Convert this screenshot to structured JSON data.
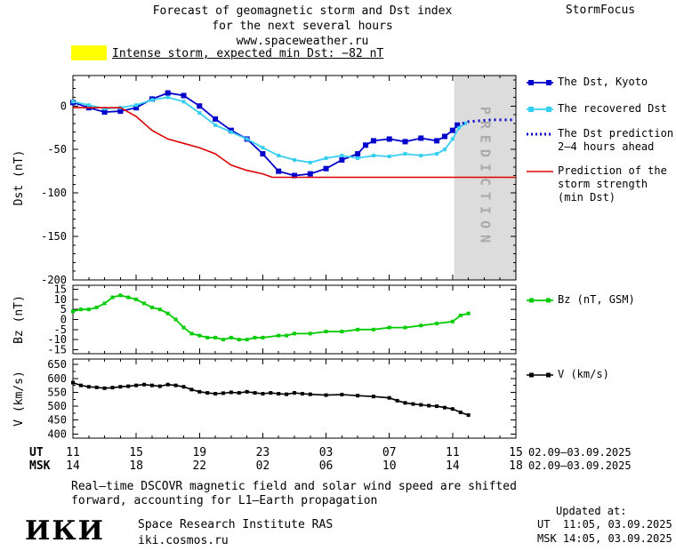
{
  "header": {
    "title_line1": "Forecast of geomagnetic storm and Dst index",
    "title_line2": "for the next several hours",
    "title_line3": "www.spaceweather.ru",
    "brand": "StormFocus"
  },
  "alert": {
    "swatch_color": "#ffff00",
    "text": "Intense storm, expected min Dst: −82 nT"
  },
  "legend": {
    "dst_kyoto": {
      "label": "The Dst, Kyoto",
      "color": "#0000cc"
    },
    "recovered": {
      "label": "The recovered Dst",
      "color": "#36cff2"
    },
    "prediction": {
      "label_line1": "The Dst prediction",
      "label_line2": "2–4 hours ahead",
      "color": "#0000cc"
    },
    "storm_strength": {
      "label_line1": "Prediction of the",
      "label_line2": "storm strength",
      "label_line3": "(min Dst)",
      "color": "#dd0000"
    },
    "bz": {
      "label": "Bz (nT, GSM)",
      "color": "#00cc00"
    },
    "v": {
      "label": "V (km/s)",
      "color": "#000000"
    }
  },
  "axes": {
    "dst_ylabel": "Dst (nT)",
    "bz_ylabel": "Bz (nT)",
    "v_ylabel": "V (km/s)",
    "ut_row_label": "UT",
    "msk_row_label": "MSK",
    "ut_date_range": "02.09–03.09.2025",
    "msk_date_range": "02.09–03.09.2025"
  },
  "prediction_band": {
    "label": "PREDICTION",
    "start_hour": 24.1,
    "color": "#dcdcdc",
    "text_color": "#a9a9a9"
  },
  "footer": {
    "note_line1": "Real–time DSCOVR magnetic field and solar wind speed are shifted",
    "note_line2": "forward, accounting for L1–Earth propagation",
    "updated_label": "Updated at:",
    "updated_ut": "UT  11:05, 03.09.2025",
    "updated_msk": "MSK 14:05, 03.09.2025",
    "logo": "ИКИ",
    "institute": "Space Research Institute RAS",
    "site": "iki.cosmos.ru"
  },
  "chart_data": [
    {
      "type": "line",
      "name": "Dst",
      "ylabel": "Dst (nT)",
      "ylim": [
        -200,
        35
      ],
      "yticks": [
        0,
        -50,
        -100,
        -150,
        -200
      ],
      "yminor": 10,
      "x_unit": "hours since 11:00 UT 02.09.2025",
      "x_range_hours": [
        0,
        28
      ],
      "xticks_hours": [
        0,
        4,
        8,
        12,
        16,
        20,
        24,
        28
      ],
      "xtick_labels_ut": [
        "11",
        "15",
        "19",
        "23",
        "03",
        "07",
        "11",
        "15"
      ],
      "xtick_labels_msk": [
        "14",
        "18",
        "22",
        "02",
        "06",
        "10",
        "14",
        "18"
      ],
      "series": [
        {
          "name": "The Dst, Kyoto",
          "color": "#0000cc",
          "style": "solid",
          "marker": "square",
          "marker_size": 6,
          "width": 1.8,
          "points": [
            [
              0,
              4
            ],
            [
              1,
              -2
            ],
            [
              2,
              -7
            ],
            [
              3,
              -6
            ],
            [
              4,
              -2
            ],
            [
              5,
              8
            ],
            [
              6,
              15
            ],
            [
              7,
              12
            ],
            [
              8,
              0
            ],
            [
              9,
              -15
            ],
            [
              10,
              -28
            ],
            [
              11,
              -38
            ],
            [
              12,
              -55
            ],
            [
              13,
              -75
            ],
            [
              14,
              -80
            ],
            [
              15,
              -78
            ],
            [
              16,
              -72
            ],
            [
              17,
              -62
            ],
            [
              18,
              -55
            ],
            [
              18.5,
              -45
            ],
            [
              19,
              -40
            ],
            [
              20,
              -38
            ],
            [
              21,
              -41
            ],
            [
              22,
              -37
            ],
            [
              23,
              -40
            ],
            [
              23.5,
              -35
            ],
            [
              24,
              -28
            ],
            [
              24.3,
              -22
            ]
          ]
        },
        {
          "name": "The recovered Dst",
          "color": "#36cff2",
          "style": "solid",
          "marker": "square",
          "marker_size": 4,
          "width": 1.8,
          "points": [
            [
              0,
              5
            ],
            [
              1,
              1
            ],
            [
              2,
              -3
            ],
            [
              3,
              -2
            ],
            [
              4,
              1
            ],
            [
              5,
              7
            ],
            [
              6,
              10
            ],
            [
              7,
              5
            ],
            [
              8,
              -8
            ],
            [
              9,
              -22
            ],
            [
              10,
              -30
            ],
            [
              11,
              -38
            ],
            [
              12,
              -48
            ],
            [
              13,
              -57
            ],
            [
              14,
              -62
            ],
            [
              15,
              -65
            ],
            [
              16,
              -60
            ],
            [
              17,
              -57
            ],
            [
              18,
              -60
            ],
            [
              19,
              -57
            ],
            [
              20,
              -58
            ],
            [
              21,
              -55
            ],
            [
              22,
              -57
            ],
            [
              23,
              -55
            ],
            [
              23.5,
              -50
            ],
            [
              24,
              -38
            ],
            [
              24.4,
              -25
            ],
            [
              24.8,
              -20
            ]
          ]
        },
        {
          "name": "The Dst prediction 2–4 hours ahead",
          "color": "#0000cc",
          "style": "dotted",
          "marker": "none",
          "width": 3,
          "points": [
            [
              24.3,
              -22
            ],
            [
              25,
              -18
            ],
            [
              25.7,
              -17
            ],
            [
              26.4,
              -16
            ],
            [
              27.2,
              -16
            ],
            [
              28,
              -16
            ]
          ]
        },
        {
          "name": "Prediction of the storm strength (min Dst)",
          "color": "#dd0000",
          "style": "solid",
          "marker": "none",
          "width": 1.6,
          "points": [
            [
              0,
              -2
            ],
            [
              3,
              -2
            ],
            [
              4,
              -12
            ],
            [
              5,
              -28
            ],
            [
              6,
              -38
            ],
            [
              7,
              -43
            ],
            [
              8,
              -48
            ],
            [
              9,
              -55
            ],
            [
              10,
              -68
            ],
            [
              11,
              -74
            ],
            [
              12,
              -78
            ],
            [
              12.6,
              -82
            ],
            [
              28,
              -82
            ]
          ]
        }
      ]
    },
    {
      "type": "line",
      "name": "Bz",
      "ylabel": "Bz (nT)",
      "ylim": [
        -17,
        17
      ],
      "yticks": [
        15,
        10,
        5,
        0,
        -5,
        -10,
        -15
      ],
      "yminor": null,
      "series": [
        {
          "name": "Bz (nT, GSM)",
          "color": "#00cc00",
          "style": "solid",
          "marker": "square",
          "marker_size": 4,
          "width": 1.8,
          "points": [
            [
              0,
              4
            ],
            [
              0.5,
              5
            ],
            [
              1,
              5
            ],
            [
              1.5,
              6
            ],
            [
              2,
              8
            ],
            [
              2.5,
              11
            ],
            [
              3,
              12
            ],
            [
              3.5,
              11
            ],
            [
              4,
              10
            ],
            [
              4.5,
              8
            ],
            [
              5,
              6
            ],
            [
              5.5,
              5
            ],
            [
              6,
              3
            ],
            [
              6.5,
              0
            ],
            [
              7,
              -4
            ],
            [
              7.5,
              -7
            ],
            [
              8,
              -8
            ],
            [
              8.5,
              -9
            ],
            [
              9,
              -9
            ],
            [
              9.5,
              -10
            ],
            [
              10,
              -9
            ],
            [
              10.5,
              -10
            ],
            [
              11,
              -10
            ],
            [
              11.5,
              -9
            ],
            [
              12,
              -9
            ],
            [
              13,
              -8
            ],
            [
              13.5,
              -8
            ],
            [
              14,
              -7
            ],
            [
              15,
              -7
            ],
            [
              16,
              -6
            ],
            [
              17,
              -6
            ],
            [
              18,
              -5
            ],
            [
              19,
              -5
            ],
            [
              20,
              -4
            ],
            [
              21,
              -4
            ],
            [
              22,
              -3
            ],
            [
              23,
              -2
            ],
            [
              24,
              -1
            ],
            [
              24.5,
              2
            ],
            [
              25,
              3
            ]
          ]
        }
      ]
    },
    {
      "type": "line",
      "name": "V",
      "ylabel": "V (km/s)",
      "ylim": [
        385,
        670
      ],
      "yticks": [
        650,
        600,
        550,
        500,
        450,
        400
      ],
      "yminor": 25,
      "series": [
        {
          "name": "V (km/s)",
          "color": "#000000",
          "style": "solid",
          "marker": "square",
          "marker_size": 4,
          "width": 1.6,
          "points": [
            [
              0,
              585
            ],
            [
              0.5,
              575
            ],
            [
              1,
              570
            ],
            [
              1.5,
              568
            ],
            [
              2,
              565
            ],
            [
              2.5,
              567
            ],
            [
              3,
              570
            ],
            [
              3.5,
              572
            ],
            [
              4,
              575
            ],
            [
              4.5,
              578
            ],
            [
              5,
              575
            ],
            [
              5.5,
              572
            ],
            [
              6,
              578
            ],
            [
              6.5,
              575
            ],
            [
              7,
              570
            ],
            [
              7.5,
              560
            ],
            [
              8,
              552
            ],
            [
              8.5,
              548
            ],
            [
              9,
              545
            ],
            [
              9.5,
              547
            ],
            [
              10,
              550
            ],
            [
              10.5,
              548
            ],
            [
              11,
              552
            ],
            [
              11.5,
              548
            ],
            [
              12,
              545
            ],
            [
              12.5,
              548
            ],
            [
              13,
              545
            ],
            [
              13.5,
              543
            ],
            [
              14,
              548
            ],
            [
              14.5,
              545
            ],
            [
              15,
              543
            ],
            [
              16,
              540
            ],
            [
              17,
              542
            ],
            [
              18,
              538
            ],
            [
              19,
              535
            ],
            [
              20,
              530
            ],
            [
              20.5,
              520
            ],
            [
              21,
              512
            ],
            [
              21.5,
              508
            ],
            [
              22,
              505
            ],
            [
              22.5,
              502
            ],
            [
              23,
              500
            ],
            [
              23.5,
              495
            ],
            [
              24,
              490
            ],
            [
              24.5,
              478
            ],
            [
              25,
              468
            ]
          ]
        }
      ]
    }
  ]
}
